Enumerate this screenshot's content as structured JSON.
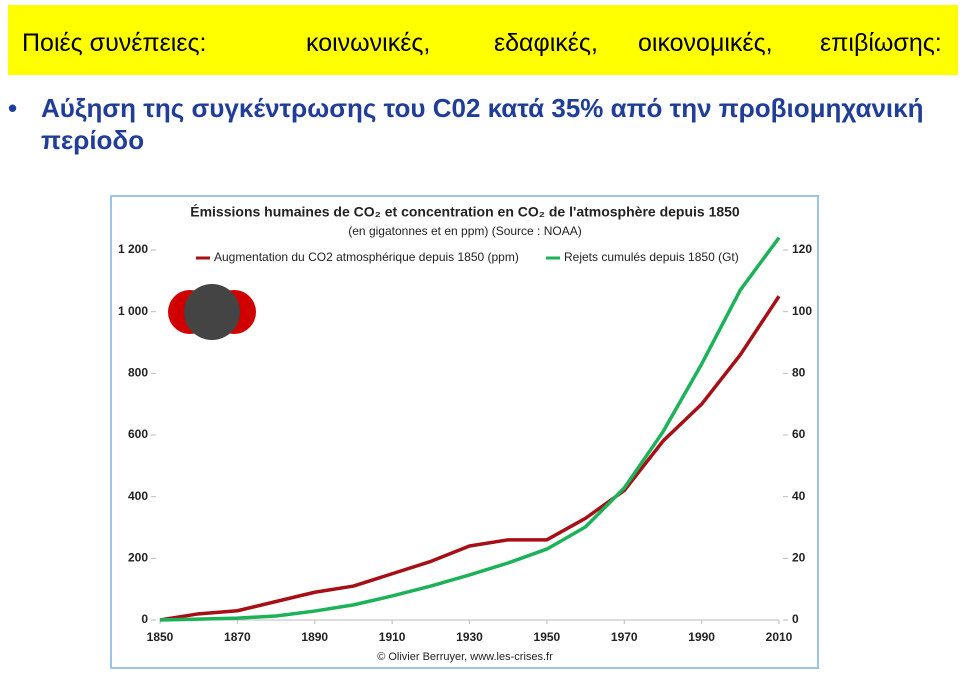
{
  "header": {
    "lead": "Ποιές συνέπειες:",
    "items": [
      "κοινωνικές,",
      "εδαφικές,",
      "οικονομικές,",
      "επιβίωσης:"
    ]
  },
  "bullet": "Αύξηση της συγκέντρωσης του C02 κατά 35% από την προβιομηχανική περίοδο",
  "chart_data": {
    "type": "line",
    "title": "Émissions humaines de CO₂ et concentration en CO₂ de l'atmosphère depuis 1850",
    "subtitle": "(en gigatonnes et en ppm) (Source : NOAA)",
    "credit": "© Olivier Berruyer, www.les-crises.fr",
    "x": [
      1850,
      1860,
      1870,
      1880,
      1890,
      1900,
      1910,
      1920,
      1930,
      1940,
      1950,
      1960,
      1970,
      1980,
      1990,
      2000,
      2010
    ],
    "series": [
      {
        "name": "Augmentation du CO2 atmosphérique depuis 1850 (ppm)",
        "color": "#a50f15",
        "axis": "y2",
        "values": [
          0,
          2,
          3,
          6,
          9,
          11,
          15,
          19,
          24,
          26,
          26,
          33,
          42,
          58,
          70,
          86,
          105
        ]
      },
      {
        "name": "Rejets cumulés depuis 1850 (Gt)",
        "color": "#1db25a",
        "values": [
          0,
          3,
          6,
          13,
          29,
          49,
          78,
          110,
          146,
          185,
          230,
          302,
          428,
          610,
          830,
          1070,
          1240
        ]
      }
    ],
    "xlim": [
      1850,
      2010
    ],
    "xticks": [
      1850,
      1870,
      1890,
      1910,
      1930,
      1950,
      1970,
      1990,
      2010
    ],
    "ylim": [
      0,
      1200
    ],
    "yticks": [
      0,
      200,
      400,
      600,
      800,
      {
        "value": 1000,
        "label": "1 000"
      },
      {
        "value": 1200,
        "label": "1 200"
      }
    ],
    "y2lim": [
      0,
      120
    ],
    "y2ticks": [
      0,
      20,
      40,
      60,
      80,
      100,
      120
    ]
  }
}
